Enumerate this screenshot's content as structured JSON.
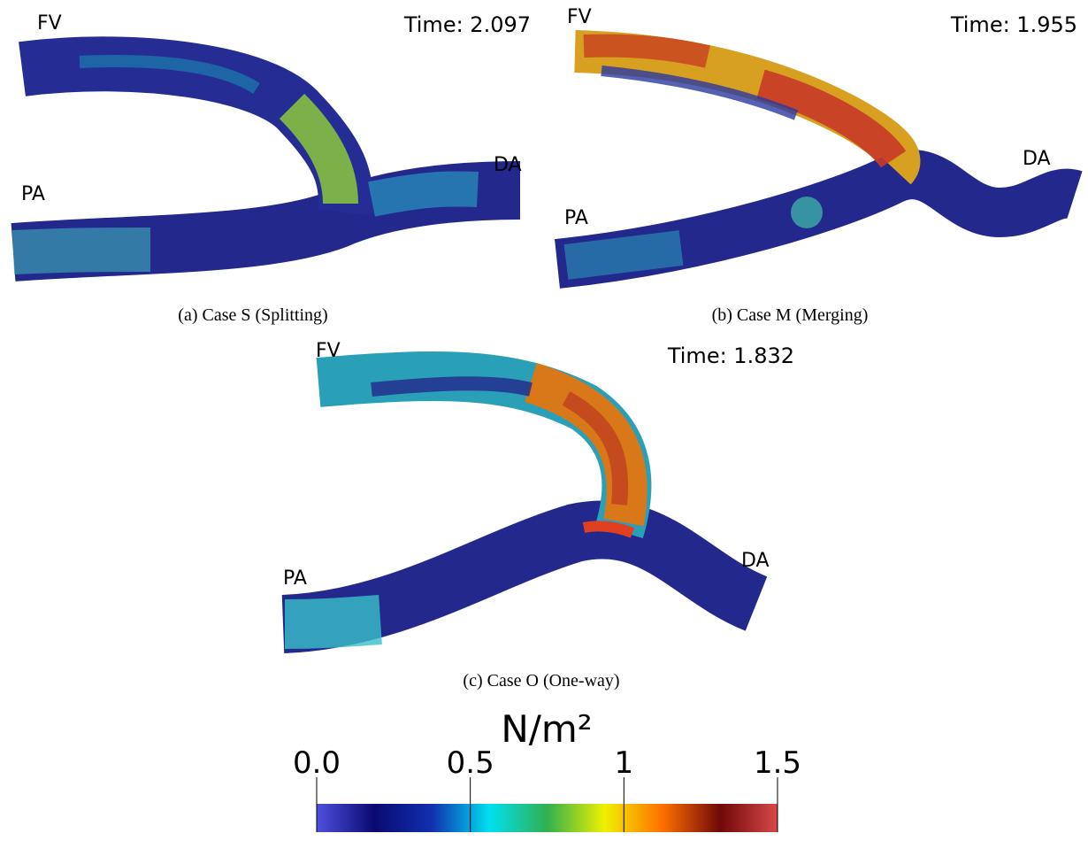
{
  "panels": [
    {
      "time": "Time: 2.097",
      "labels": {
        "fv": "FV",
        "pa": "PA",
        "da": "DA"
      },
      "caption": "(a) Case S (Splitting)"
    },
    {
      "time": "Time: 1.955",
      "labels": {
        "fv": "FV",
        "pa": "PA",
        "da": "DA"
      },
      "caption": "(b) Case M (Merging)"
    },
    {
      "time": "Time: 1.832",
      "labels": {
        "fv": "FV",
        "pa": "PA",
        "da": "DA"
      },
      "caption": "(c) Case O (One-way)"
    }
  ],
  "colorbar": {
    "title": "N/m²",
    "range": [
      0,
      1.5
    ],
    "ticks": [
      {
        "value": 0,
        "label": "0.0"
      },
      0.5,
      1,
      1.5
    ],
    "colors": [
      "#5050e0",
      "#0a0a70",
      "#1030b0",
      "#00e0f0",
      "#30b050",
      "#f0f000",
      "#ff7000",
      "#700808",
      "#d84848"
    ]
  }
}
